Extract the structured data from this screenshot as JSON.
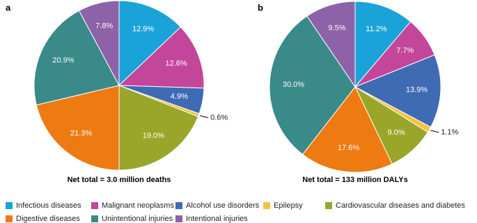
{
  "chart_data": [
    {
      "type": "pie",
      "label": "a",
      "caption": "Net total = 3.0 million deaths",
      "categories": [
        "Infectious diseases",
        "Malignant neoplasms",
        "Alcohol use disorders",
        "Epilepsy",
        "Cardiovascular diseases and diabetes",
        "Digestive diseases",
        "Unintentional injuries",
        "Intentional injuries"
      ],
      "values": [
        12.9,
        12.6,
        4.9,
        0.6,
        19.0,
        21.3,
        20.9,
        7.8
      ],
      "value_labels": [
        "12.9%",
        "12.6%",
        "4.9%",
        "0.6%",
        "19.0%",
        "21.3%",
        "20.9%",
        "7.8%"
      ],
      "colors": [
        "#1aa3d8",
        "#c4469a",
        "#3f6bb5",
        "#f5c242",
        "#9aa62a",
        "#ee7a12",
        "#3a8a8a",
        "#8e62a8"
      ]
    },
    {
      "type": "pie",
      "label": "b",
      "caption": "Net total = 133 million DALYs",
      "categories": [
        "Infectious diseases",
        "Malignant neoplasms",
        "Alcohol use disorders",
        "Epilepsy",
        "Cardiovascular diseases and diabetes",
        "Digestive diseases",
        "Unintentional injuries",
        "Intentional injuries"
      ],
      "values": [
        11.2,
        7.7,
        13.9,
        1.1,
        9.0,
        17.6,
        30.0,
        9.5
      ],
      "value_labels": [
        "11.2%",
        "7.7%",
        "13.9%",
        "1.1%",
        "9.0%",
        "17.6%",
        "30.0%",
        "9.5%"
      ],
      "colors": [
        "#1aa3d8",
        "#c4469a",
        "#3f6bb5",
        "#f5c242",
        "#9aa62a",
        "#ee7a12",
        "#3a8a8a",
        "#8e62a8"
      ]
    }
  ]
}
